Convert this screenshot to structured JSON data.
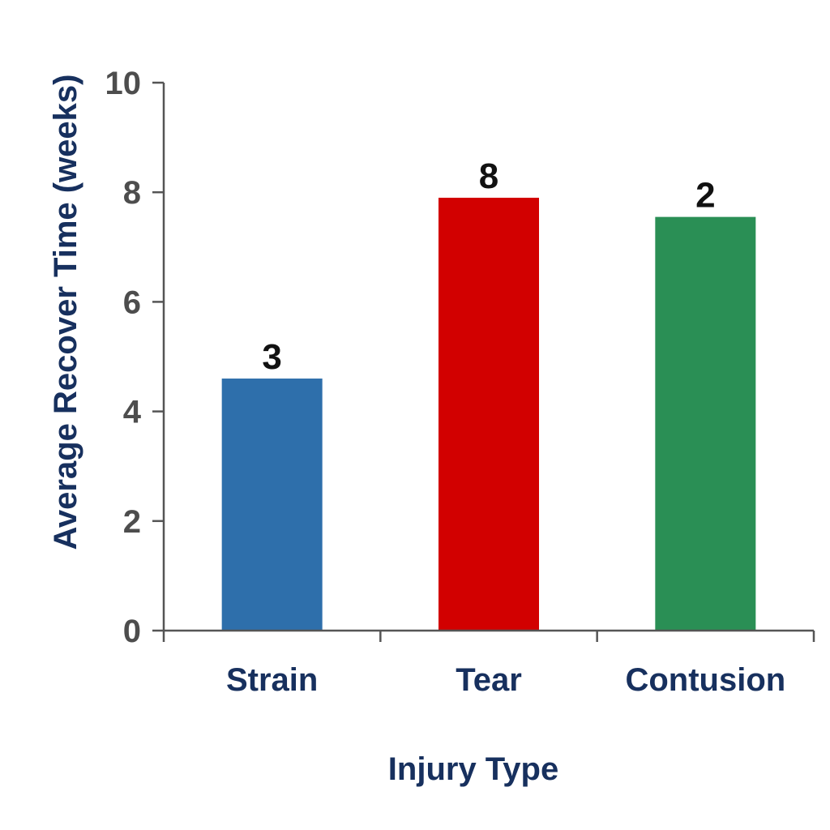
{
  "chart_data": {
    "type": "bar",
    "title": "",
    "xlabel": "Injury Type",
    "ylabel": "Average Recover Time (weeks)",
    "categories": [
      "Strain",
      "Tear",
      "Contusion"
    ],
    "values": [
      4.6,
      7.9,
      7.55
    ],
    "data_labels": [
      "3",
      "8",
      "2"
    ],
    "colors": [
      "#2e6fab",
      "#d20000",
      "#2a8f55"
    ],
    "yticks": [
      "0",
      "2",
      "4",
      "6",
      "8",
      "10"
    ],
    "ylim": [
      0,
      10
    ],
    "grid": false,
    "legend": "none"
  }
}
